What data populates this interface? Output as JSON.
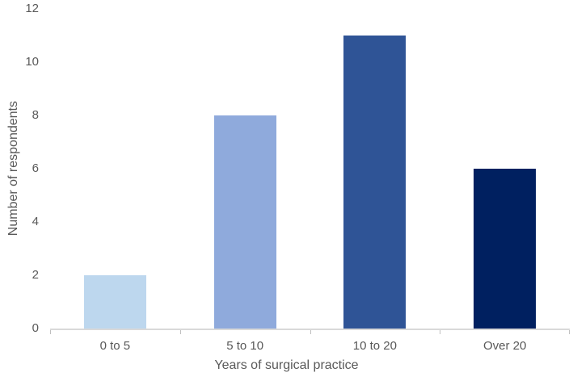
{
  "chart_data": {
    "type": "bar",
    "categories": [
      "0 to 5",
      "5 to 10",
      "10 to 20",
      "Over 20"
    ],
    "values": [
      2,
      8,
      11,
      6
    ],
    "title": "",
    "xlabel": "Years of surgical practice",
    "ylabel": "Number of respondents",
    "ylim": [
      0,
      12
    ],
    "yticks": [
      0,
      2,
      4,
      6,
      8,
      10,
      12
    ],
    "grid": false,
    "legend": "none",
    "bar_colors": [
      "#bdd7ee",
      "#8faadc",
      "#2f5496",
      "#002060"
    ],
    "axis_line_color": "#d9d9d9",
    "tick_mark_color": "#bfbfbf",
    "text_color": "#595959",
    "background_color": "#ffffff"
  }
}
